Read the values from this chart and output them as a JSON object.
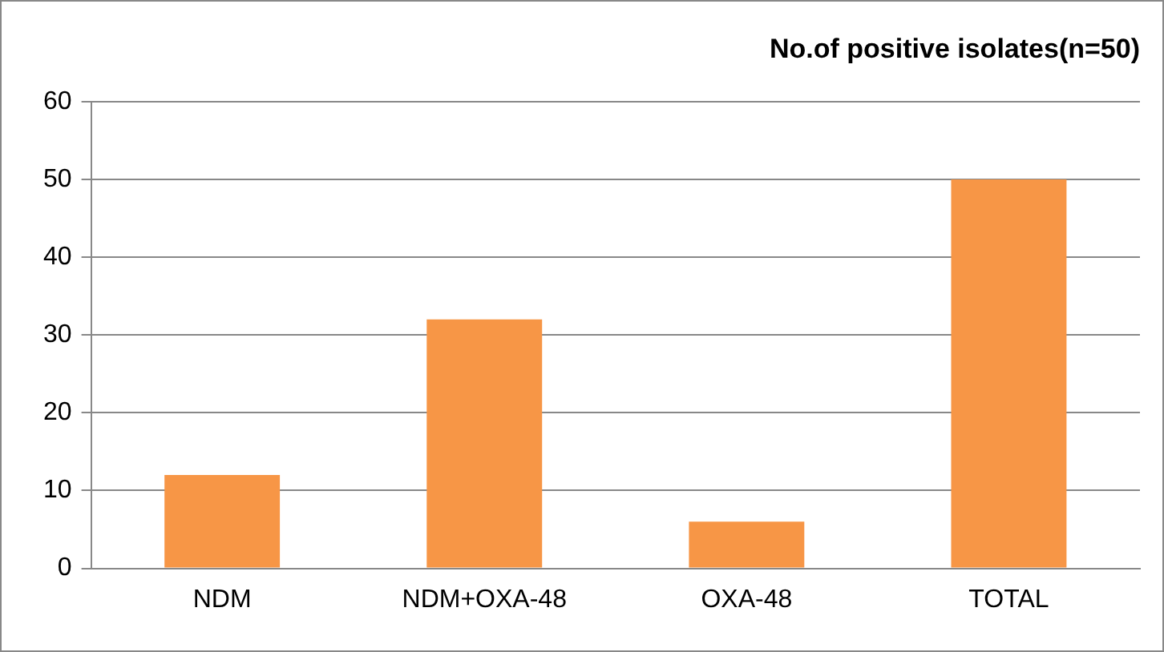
{
  "chart_data": {
    "type": "bar",
    "title": "No.of positive isolates(n=50)",
    "categories": [
      "NDM",
      "NDM+OXA-48",
      "OXA-48",
      "TOTAL"
    ],
    "values": [
      12,
      32,
      6,
      50
    ],
    "color": "#f79646",
    "ylim": [
      0,
      60
    ],
    "yticks": [
      0,
      10,
      20,
      30,
      40,
      50,
      60
    ],
    "grid": "y"
  }
}
